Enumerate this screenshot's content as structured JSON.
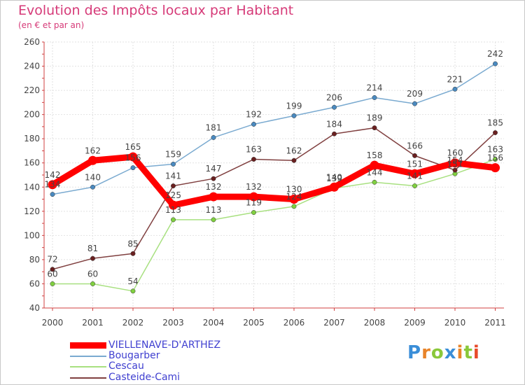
{
  "chart_data": {
    "type": "line",
    "title": "Evolution des Impôts locaux par Habitant",
    "subtitle": "(en € et par an)",
    "xlabel": "",
    "ylabel": "",
    "categories": [
      "2000",
      "2001",
      "2002",
      "2003",
      "2004",
      "2005",
      "2006",
      "2007",
      "2008",
      "2009",
      "2010",
      "2011"
    ],
    "ylim": [
      40,
      260
    ],
    "yticks": [
      40,
      60,
      80,
      100,
      120,
      140,
      160,
      180,
      200,
      220,
      240,
      260
    ],
    "grid": true,
    "legend_position": "bottom-left",
    "series": [
      {
        "name": "Bougarber",
        "color": "#7aaad0",
        "marker_color": "#4a8ac0",
        "values": [
          134,
          140,
          156,
          159,
          181,
          192,
          199,
          206,
          214,
          209,
          221,
          242
        ],
        "labels": [
          "134",
          "140",
          "156",
          "159",
          "181",
          "192",
          "199",
          "206",
          "214",
          "209",
          "221",
          "242"
        ]
      },
      {
        "name": "Cescau",
        "color": "#a8e080",
        "marker_color": "#80d040",
        "values": [
          60,
          60,
          54,
          113,
          113,
          119,
          124,
          139,
          144,
          141,
          151,
          163
        ],
        "labels": [
          "60",
          "60",
          "54",
          "113",
          "113",
          "119",
          "124",
          "139",
          "144",
          "141",
          "151",
          "163"
        ]
      },
      {
        "name": "Casteide-Cami",
        "color": "#804040",
        "marker_color": "#6a2020",
        "values": [
          72,
          81,
          85,
          141,
          147,
          163,
          162,
          184,
          189,
          166,
          154,
          185
        ],
        "labels": [
          "72",
          "81",
          "85",
          "141",
          "147",
          "163",
          "162",
          "184",
          "189",
          "166",
          "154",
          "185"
        ]
      },
      {
        "name": "VIELLENAVE-D'ARTHEZ",
        "color": "#ff0000",
        "marker_color": "#ff0000",
        "values": [
          142,
          162,
          165,
          125,
          132,
          132,
          130,
          140,
          158,
          151,
          160,
          156
        ],
        "labels": [
          "142",
          "162",
          "165",
          "125",
          "132",
          "132",
          "130",
          "140",
          "158",
          "151",
          "160",
          "156"
        ]
      }
    ],
    "legend": [
      {
        "name": "VIELLENAVE-D'ARTHEZ",
        "color": "#ff0000",
        "text_color": "#4040d0",
        "thick": true
      },
      {
        "name": "Bougarber",
        "color": "#7aaad0",
        "text_color": "#4040d0",
        "thick": false
      },
      {
        "name": "Cescau",
        "color": "#a8e080",
        "text_color": "#4040d0",
        "thick": false
      },
      {
        "name": "Casteide-Cami",
        "color": "#804040",
        "text_color": "#4040d0",
        "thick": false
      }
    ]
  },
  "logo": {
    "text": "Proxiti",
    "colors": [
      "#3a8ed8",
      "#e8842a",
      "#8ac83a",
      "#3a8ed8",
      "#e8842a",
      "#8ac83a",
      "#e84a2a"
    ]
  }
}
